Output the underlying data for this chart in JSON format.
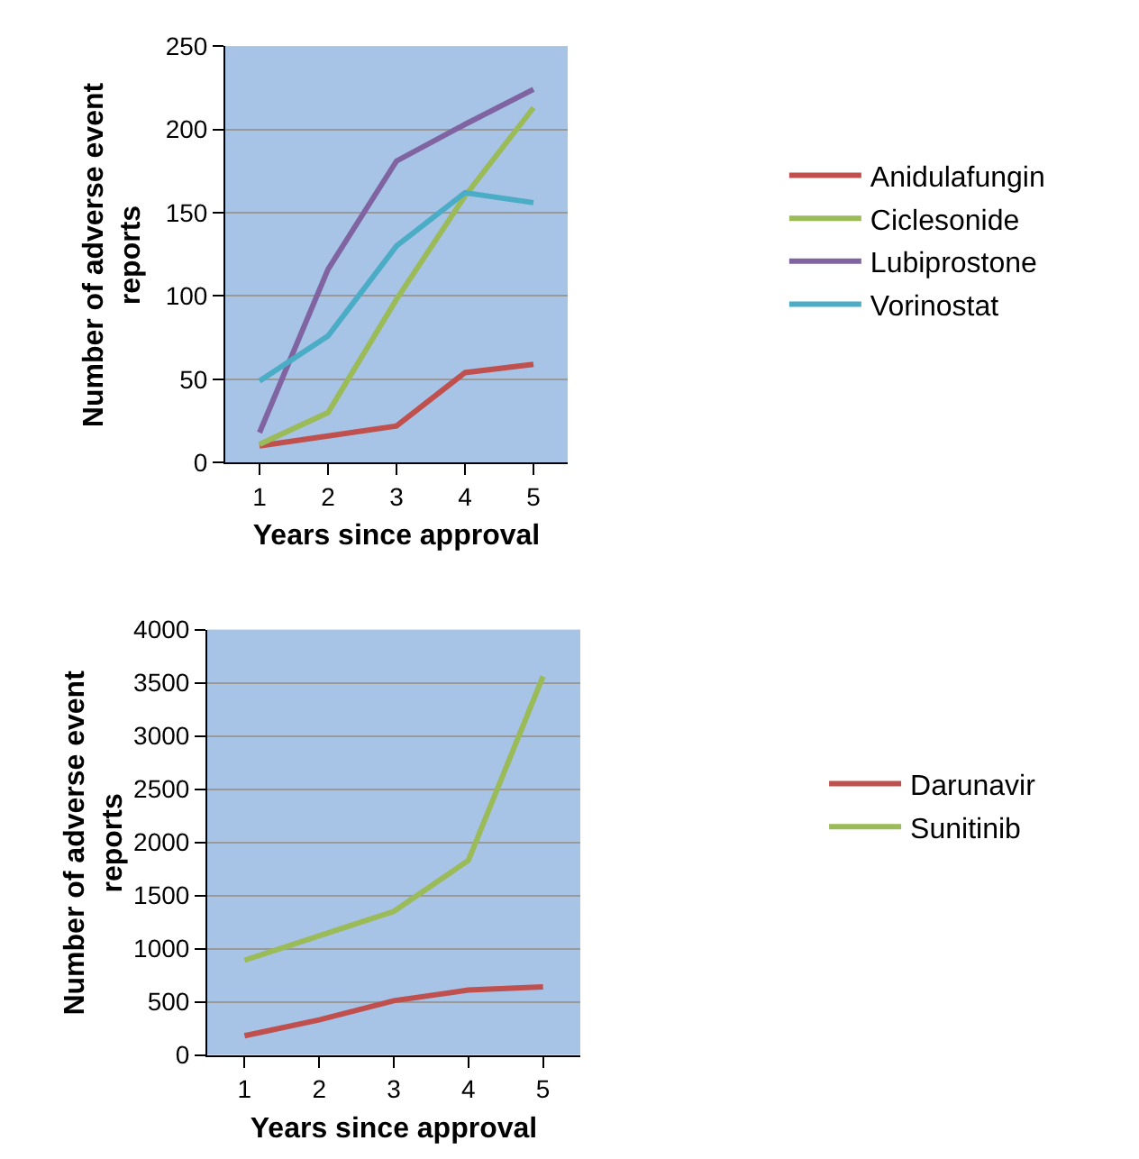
{
  "chart_data": [
    {
      "type": "line",
      "xlabel": "Years since approval",
      "ylabel": "Number of adverse event reports",
      "categories": [
        "1",
        "2",
        "3",
        "4",
        "5"
      ],
      "ylim": [
        0,
        250
      ],
      "yticks": [
        0,
        50,
        100,
        150,
        200,
        250
      ],
      "grid": "y",
      "legend": "right",
      "marker": "none",
      "line_style": "solid",
      "series": [
        {
          "name": "Anidulafungin",
          "color": "#c0504d",
          "values": [
            10,
            16,
            22,
            54,
            59
          ]
        },
        {
          "name": "Ciclesonide",
          "color": "#9bbb59",
          "values": [
            11,
            30,
            98,
            160,
            213
          ]
        },
        {
          "name": "Lubiprostone",
          "color": "#8064a2",
          "values": [
            18,
            116,
            181,
            203,
            224
          ]
        },
        {
          "name": "Vorinostat",
          "color": "#4bacc6",
          "values": [
            49,
            76,
            130,
            162,
            156
          ]
        }
      ]
    },
    {
      "type": "line",
      "xlabel": "Years since approval",
      "ylabel": "Number of adverse event reports",
      "categories": [
        "1",
        "2",
        "3",
        "4",
        "5"
      ],
      "ylim": [
        0,
        4000
      ],
      "yticks": [
        0,
        500,
        1000,
        1500,
        2000,
        2500,
        3000,
        3500,
        4000
      ],
      "grid": "y",
      "legend": "right",
      "marker": "none",
      "line_style": "solid",
      "series": [
        {
          "name": "Darunavir",
          "color": "#c0504d",
          "values": [
            180,
            330,
            510,
            610,
            640
          ]
        },
        {
          "name": "Sunitinib",
          "color": "#9bbb59",
          "values": [
            890,
            1120,
            1350,
            1830,
            3560
          ]
        }
      ]
    }
  ]
}
